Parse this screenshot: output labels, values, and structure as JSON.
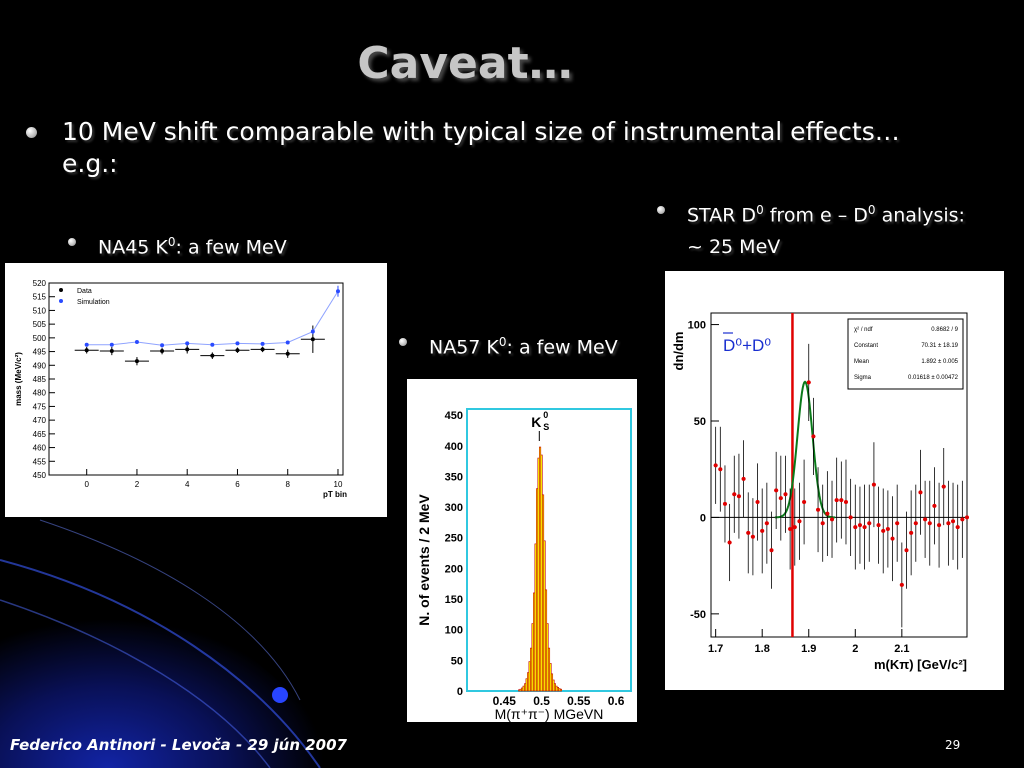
{
  "slide": {
    "title": "Caveat…",
    "bullet_main_line1": "10 MeV shift comparable with typical size of instrumental effects…",
    "bullet_main_line2": "e.g.:",
    "bullet_na45_pre": "NA45 K",
    "bullet_na45_post": ": a few MeV",
    "bullet_na57_pre": "NA57 K",
    "bullet_na57_post": ": a few MeV",
    "bullet_star_pre": "STAR D",
    "bullet_star_mid": " from e – D",
    "bullet_star_post": " analysis:",
    "bullet_star_line2": "~ 25 MeV",
    "sup0": "0",
    "footer": "Federico Antinori - Levoča - 29 jún 2007",
    "page_number": "29"
  },
  "chart_data": [
    {
      "type": "scatter",
      "ylabel": "mass (MeV/c²)",
      "xlabel": "pT bin",
      "xlim": [
        -1.5,
        10.2
      ],
      "ylim": [
        450,
        520
      ],
      "xticks": [
        "0",
        "2",
        "4",
        "6",
        "8",
        "10"
      ],
      "yticks": [
        "450",
        "455",
        "460",
        "465",
        "470",
        "475",
        "480",
        "485",
        "490",
        "495",
        "500",
        "505",
        "510",
        "515",
        "520"
      ],
      "legend": [
        "Data",
        "Simulation"
      ],
      "legend_position": "top-left",
      "series": [
        {
          "name": "Data",
          "color": "#000000",
          "x": [
            0,
            1,
            2,
            3,
            4,
            5,
            6,
            7,
            8,
            9
          ],
          "values": [
            495.5,
            495.2,
            491.5,
            495.2,
            495.8,
            493.5,
            495.5,
            495.8,
            494.2,
            499.5
          ],
          "errors": [
            1.2,
            1.5,
            1.5,
            1.2,
            1.5,
            1.2,
            1.0,
            1.0,
            1.5,
            5.0
          ]
        },
        {
          "name": "Simulation",
          "color": "#2a4bff",
          "x": [
            0,
            1,
            2,
            3,
            4,
            5,
            6,
            7,
            8,
            9,
            10
          ],
          "values": [
            497.5,
            497.5,
            498.5,
            497.3,
            498.0,
            497.5,
            498.0,
            497.8,
            498.3,
            502.3,
            517.0
          ],
          "errors": [
            0.3,
            0.3,
            0.3,
            0.3,
            0.3,
            0.3,
            0.3,
            0.3,
            0.3,
            1.0,
            2.0
          ]
        }
      ]
    },
    {
      "type": "bar",
      "ylabel": "N. of events / 2 MeV",
      "xlabel": "M(π⁺π⁻)   MGeVN",
      "xlim": [
        0.4,
        0.62
      ],
      "ylim": [
        0,
        460
      ],
      "xticks": [
        "0.45",
        "0.5",
        "0.55",
        "0.6"
      ],
      "yticks": [
        "0",
        "50",
        "100",
        "150",
        "200",
        "250",
        "300",
        "350",
        "400",
        "450"
      ],
      "annotation": "K",
      "annotation_sub": "S",
      "annotation_sup": "0",
      "bar_color": "#ffff00",
      "bin_width": 0.002,
      "x": [
        0.47,
        0.472,
        0.474,
        0.476,
        0.478,
        0.48,
        0.482,
        0.484,
        0.486,
        0.488,
        0.49,
        0.492,
        0.494,
        0.496,
        0.498,
        0.5,
        0.502,
        0.504,
        0.506,
        0.508,
        0.51,
        0.512,
        0.514,
        0.516,
        0.518,
        0.52,
        0.522,
        0.524,
        0.526
      ],
      "values": [
        2,
        3,
        5,
        8,
        12,
        20,
        30,
        48,
        70,
        110,
        160,
        240,
        330,
        380,
        398,
        385,
        320,
        245,
        165,
        110,
        70,
        45,
        28,
        18,
        12,
        8,
        6,
        4,
        3
      ]
    },
    {
      "type": "scatter",
      "ylabel": "dn/dm",
      "xlabel": "m(Kπ) [GeV/c²]",
      "xlim": [
        1.69,
        2.24
      ],
      "ylim": [
        -62,
        106
      ],
      "xticks": [
        "1.7",
        "1.8",
        "1.9",
        "2",
        "2.1"
      ],
      "yticks": [
        "-50",
        "0",
        "50",
        "100"
      ],
      "annotation": "D⁰+D⁰",
      "stats": [
        {
          "label": "χ² / ndf",
          "value": "0.8682 / 9"
        },
        {
          "label": "Constant",
          "value": "70.31 ± 18.19"
        },
        {
          "label": "Mean",
          "value": "1.892 ± 0.005"
        },
        {
          "label": "Sigma",
          "value": "0.01618 ± 0.00472"
        }
      ],
      "marker_line_x": 1.865,
      "fit": {
        "constant": 70.31,
        "mean": 1.892,
        "sigma": 0.01618
      },
      "series": [
        {
          "name": "",
          "color": "#e00000",
          "x": [
            1.7,
            1.71,
            1.72,
            1.73,
            1.74,
            1.75,
            1.76,
            1.77,
            1.78,
            1.79,
            1.8,
            1.81,
            1.82,
            1.83,
            1.84,
            1.85,
            1.86,
            1.87,
            1.88,
            1.89,
            1.9,
            1.91,
            1.92,
            1.93,
            1.94,
            1.95,
            1.96,
            1.97,
            1.98,
            1.99,
            2.0,
            2.01,
            2.02,
            2.03,
            2.04,
            2.05,
            2.06,
            2.07,
            2.08,
            2.09,
            2.1,
            2.11,
            2.12,
            2.13,
            2.14,
            2.15,
            2.16,
            2.17,
            2.18,
            2.19,
            2.2,
            2.21,
            2.22,
            2.23,
            2.24
          ],
          "values": [
            27,
            25,
            7,
            -13,
            12,
            11,
            20,
            -8,
            -10,
            8,
            -7,
            -3,
            -17,
            14,
            10,
            12,
            -6,
            -5,
            -2,
            8,
            70,
            42,
            4,
            -3,
            2,
            -1,
            9,
            9,
            8,
            0,
            -5,
            -4,
            -5,
            -3,
            17,
            -4,
            -7,
            -6,
            -11,
            -3,
            -35,
            -17,
            -8,
            -3,
            13,
            -1,
            -3,
            6,
            -4,
            16,
            -3,
            -2,
            -5,
            -1,
            0
          ],
          "errors": [
            20,
            22,
            20,
            20,
            20,
            22,
            20,
            21,
            20,
            20,
            22,
            21,
            20,
            20,
            22,
            20,
            21,
            20,
            20,
            22,
            20,
            20,
            22,
            20,
            22,
            20,
            22,
            20,
            22,
            20,
            22,
            20,
            22,
            20,
            22,
            20,
            22,
            20,
            22,
            20,
            22,
            20,
            22,
            20,
            22,
            20,
            22,
            20,
            22,
            20,
            22,
            20,
            22,
            20,
            22
          ]
        }
      ]
    }
  ]
}
